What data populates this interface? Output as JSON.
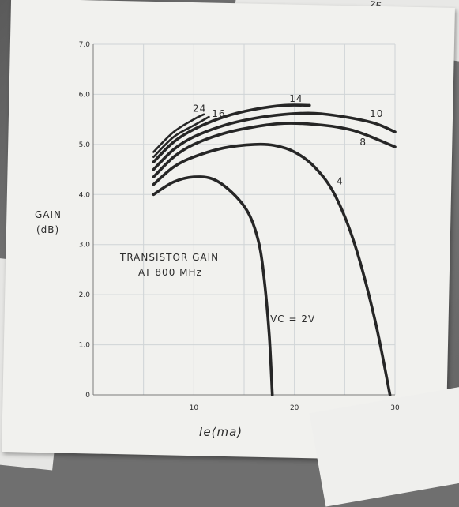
{
  "corner_label": "ZE",
  "chart_data": {
    "type": "line",
    "title": [
      "TRANSISTOR GAIN",
      "AT 800 MHz"
    ],
    "xlabel": "Ie(ma)",
    "ylabel": [
      "GAIN",
      "(dB)"
    ],
    "xlim": [
      0,
      30
    ],
    "ylim": [
      0,
      7
    ],
    "x_ticks": [
      "10",
      "20",
      "30"
    ],
    "y_ticks": [
      "0",
      "1.0",
      "2.0",
      "3.0",
      "4.0",
      "5.0",
      "6.0",
      "7.0"
    ],
    "grid": true,
    "series": [
      {
        "name": "VC = 2V",
        "points": [
          [
            6,
            4.0
          ],
          [
            8,
            4.25
          ],
          [
            10,
            4.35
          ],
          [
            12,
            4.3
          ],
          [
            14,
            4.0
          ],
          [
            15.5,
            3.6
          ],
          [
            16.5,
            3.0
          ],
          [
            17,
            2.3
          ],
          [
            17.5,
            1.2
          ],
          [
            17.8,
            0
          ]
        ]
      },
      {
        "name": "4",
        "points": [
          [
            6,
            4.2
          ],
          [
            8,
            4.55
          ],
          [
            10,
            4.75
          ],
          [
            13,
            4.93
          ],
          [
            16,
            5.0
          ],
          [
            18,
            4.98
          ],
          [
            20,
            4.85
          ],
          [
            22,
            4.55
          ],
          [
            24,
            4.0
          ],
          [
            26,
            3.0
          ],
          [
            28,
            1.5
          ],
          [
            29.5,
            0
          ]
        ]
      },
      {
        "name": "8",
        "points": [
          [
            6,
            4.35
          ],
          [
            8,
            4.75
          ],
          [
            10,
            5.0
          ],
          [
            13,
            5.22
          ],
          [
            16,
            5.35
          ],
          [
            19,
            5.42
          ],
          [
            22,
            5.4
          ],
          [
            25,
            5.32
          ],
          [
            27,
            5.2
          ],
          [
            30,
            4.95
          ]
        ]
      },
      {
        "name": "10",
        "points": [
          [
            6,
            4.5
          ],
          [
            8,
            4.9
          ],
          [
            10,
            5.15
          ],
          [
            13,
            5.38
          ],
          [
            16,
            5.52
          ],
          [
            19,
            5.6
          ],
          [
            22,
            5.62
          ],
          [
            25,
            5.55
          ],
          [
            28,
            5.42
          ],
          [
            30,
            5.25
          ]
        ]
      },
      {
        "name": "14",
        "points": [
          [
            6,
            4.65
          ],
          [
            8,
            5.05
          ],
          [
            10,
            5.3
          ],
          [
            13,
            5.55
          ],
          [
            16,
            5.7
          ],
          [
            19,
            5.78
          ],
          [
            21.5,
            5.78
          ]
        ]
      },
      {
        "name": "16",
        "points": [
          [
            6,
            4.75
          ],
          [
            8,
            5.15
          ],
          [
            10,
            5.38
          ],
          [
            11.5,
            5.55
          ]
        ]
      },
      {
        "name": "24",
        "points": [
          [
            6,
            4.85
          ],
          [
            8,
            5.25
          ],
          [
            10,
            5.5
          ],
          [
            11,
            5.6
          ]
        ]
      }
    ],
    "annotations": [
      {
        "text": "24",
        "x": 9.9,
        "y": 5.65
      },
      {
        "text": "16",
        "x": 11.8,
        "y": 5.55
      },
      {
        "text": "14",
        "x": 19.5,
        "y": 5.85
      },
      {
        "text": "10",
        "x": 27.5,
        "y": 5.55
      },
      {
        "text": "8",
        "x": 26.5,
        "y": 4.98
      },
      {
        "text": "4",
        "x": 24.2,
        "y": 4.2
      },
      {
        "text": "VC = 2V",
        "x": 17.6,
        "y": 1.45
      }
    ]
  }
}
